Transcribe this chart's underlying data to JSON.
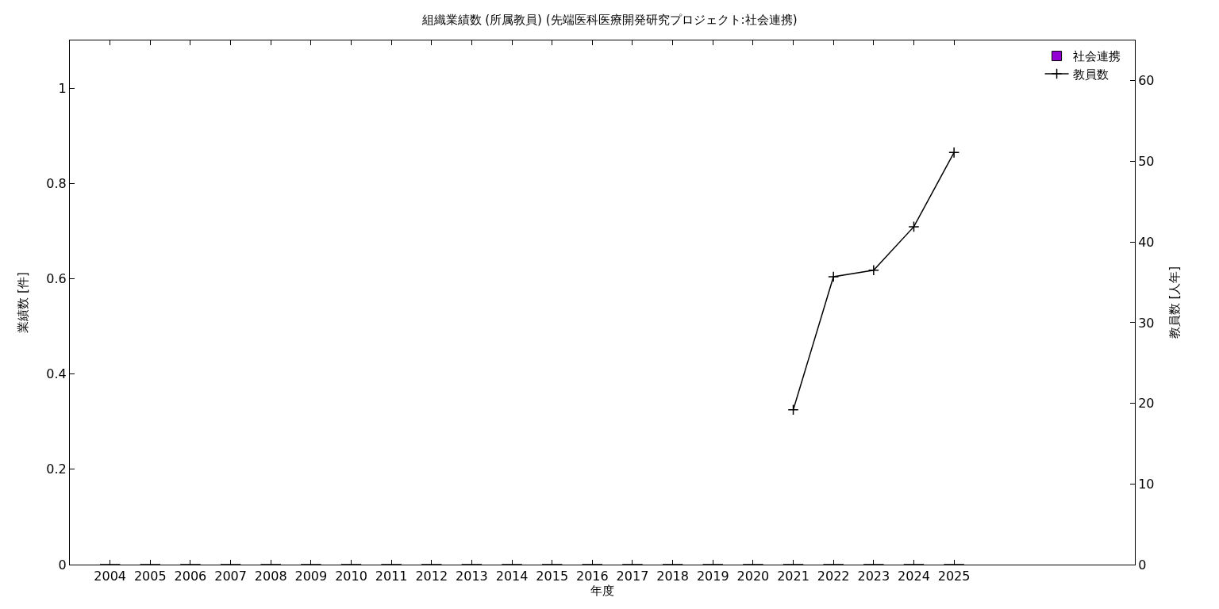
{
  "chart_data": {
    "type": "bar",
    "title": "組織業績数 (所属教員) (先端医科医療開発研究プロジェクト:社会連携)",
    "xlabel": "年度",
    "ylabel": "業績数 [件]",
    "y2label": "教員数 [人年]",
    "x": [
      2004,
      2005,
      2006,
      2007,
      2008,
      2009,
      2010,
      2011,
      2012,
      2013,
      2014,
      2015,
      2016,
      2017,
      2018,
      2019,
      2020,
      2021,
      2022,
      2023,
      2024,
      2025
    ],
    "series": [
      {
        "name": "社会連携",
        "color": "#9400d3",
        "values": [
          0,
          0,
          0,
          0,
          0,
          0,
          0,
          0,
          0,
          0,
          0,
          0,
          0,
          0,
          0,
          0,
          0,
          0,
          0,
          0,
          0,
          0
        ]
      },
      {
        "name": "教員数",
        "type": "line",
        "axis": "y2",
        "color": "#000000",
        "marker": "cross",
        "line_style": "solid",
        "x": [
          2021,
          2022,
          2023,
          2024,
          2025
        ],
        "values": [
          19.2,
          35.7,
          36.5,
          41.9,
          51.1
        ]
      }
    ],
    "xlim": [
      2003,
      2029.5
    ],
    "xticks": [
      2004,
      2005,
      2006,
      2007,
      2008,
      2009,
      2010,
      2011,
      2012,
      2013,
      2014,
      2015,
      2016,
      2017,
      2018,
      2019,
      2020,
      2021,
      2022,
      2023,
      2024,
      2025
    ],
    "ylim": [
      0,
      1.1
    ],
    "yticks": [
      0,
      0.2,
      0.4,
      0.6,
      0.8,
      1
    ],
    "y2lim": [
      0,
      65
    ],
    "y2ticks": [
      0,
      10,
      20,
      30,
      40,
      50,
      60
    ],
    "legend": "top right"
  }
}
